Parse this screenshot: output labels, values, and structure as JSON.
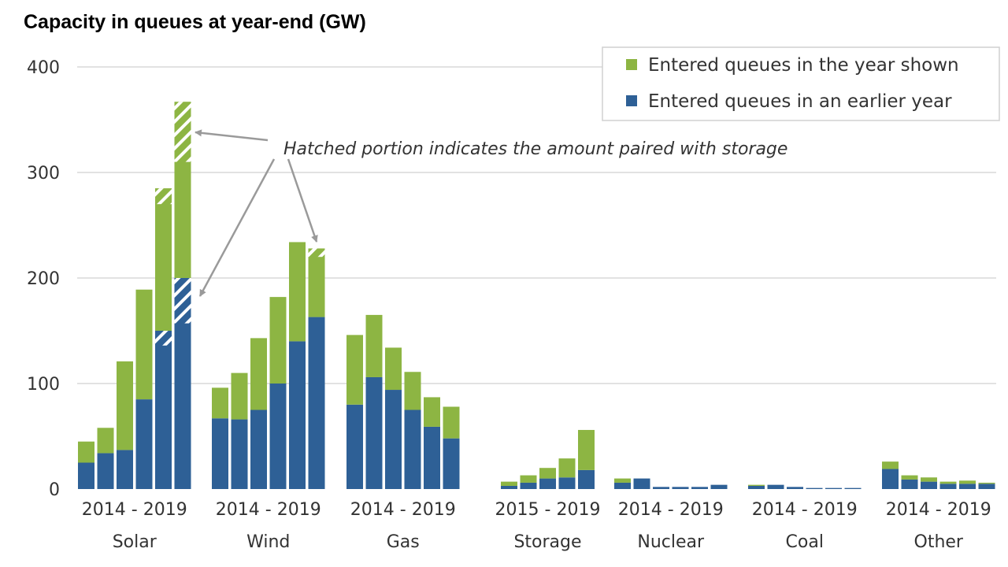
{
  "chart_data": {
    "type": "bar",
    "stacked": true,
    "title": "Capacity in queues at year-end (GW)",
    "xlabel": "",
    "ylabel": "",
    "ylim": [
      0,
      400
    ],
    "yticks": [
      0,
      100,
      200,
      300,
      400
    ],
    "grid": true,
    "legend_position": "top-right",
    "colors": {
      "shown": "#8db543",
      "earlier": "#2e6096"
    },
    "series": [
      {
        "key": "shown",
        "name": "Entered queues in the year shown"
      },
      {
        "key": "earlier",
        "name": "Entered queues in an earlier year"
      }
    ],
    "annotation": "Hatched portion indicates the amount paired with storage",
    "groups": [
      {
        "name": "Solar",
        "years": "2014 - 2019",
        "bars": [
          {
            "earlier": 25,
            "shown": 20
          },
          {
            "earlier": 34,
            "shown": 24
          },
          {
            "earlier": 37,
            "shown": 84
          },
          {
            "earlier": 85,
            "shown": 104
          },
          {
            "earlier": 150,
            "shown": 135,
            "earlier_hatched": 14,
            "shown_hatched": 15
          },
          {
            "earlier": 200,
            "shown": 167,
            "earlier_hatched": 43,
            "shown_hatched": 57
          }
        ]
      },
      {
        "name": "Wind",
        "years": "2014 - 2019",
        "bars": [
          {
            "earlier": 67,
            "shown": 29
          },
          {
            "earlier": 66,
            "shown": 44
          },
          {
            "earlier": 75,
            "shown": 68
          },
          {
            "earlier": 100,
            "shown": 82
          },
          {
            "earlier": 140,
            "shown": 94
          },
          {
            "earlier": 163,
            "shown": 65,
            "shown_hatched": 8
          }
        ]
      },
      {
        "name": "Gas",
        "years": "2014 - 2019",
        "bars": [
          {
            "earlier": 80,
            "shown": 66
          },
          {
            "earlier": 106,
            "shown": 59
          },
          {
            "earlier": 94,
            "shown": 40
          },
          {
            "earlier": 75,
            "shown": 36
          },
          {
            "earlier": 59,
            "shown": 28
          },
          {
            "earlier": 48,
            "shown": 30
          }
        ]
      },
      {
        "name": "Storage",
        "years": "2015 - 2019",
        "bars": [
          {
            "earlier": 3,
            "shown": 4
          },
          {
            "earlier": 6,
            "shown": 7
          },
          {
            "earlier": 10,
            "shown": 10
          },
          {
            "earlier": 11,
            "shown": 18
          },
          {
            "earlier": 18,
            "shown": 38
          }
        ]
      },
      {
        "name": "Nuclear",
        "years": "2014 - 2019",
        "bars": [
          {
            "earlier": 6,
            "shown": 4
          },
          {
            "earlier": 10,
            "shown": 0
          },
          {
            "earlier": 2,
            "shown": 0
          },
          {
            "earlier": 2,
            "shown": 0
          },
          {
            "earlier": 2,
            "shown": 0
          },
          {
            "earlier": 4,
            "shown": 0
          }
        ]
      },
      {
        "name": "Coal",
        "years": "2014 - 2019",
        "bars": [
          {
            "earlier": 3,
            "shown": 1
          },
          {
            "earlier": 4,
            "shown": 0
          },
          {
            "earlier": 2,
            "shown": 0
          },
          {
            "earlier": 1,
            "shown": 0
          },
          {
            "earlier": 1,
            "shown": 0
          },
          {
            "earlier": 1,
            "shown": 0
          }
        ]
      },
      {
        "name": "Other",
        "years": "2014 - 2019",
        "bars": [
          {
            "earlier": 19,
            "shown": 7
          },
          {
            "earlier": 9,
            "shown": 4
          },
          {
            "earlier": 7,
            "shown": 4
          },
          {
            "earlier": 5,
            "shown": 2
          },
          {
            "earlier": 5,
            "shown": 3
          },
          {
            "earlier": 5,
            "shown": 1
          }
        ]
      }
    ]
  }
}
